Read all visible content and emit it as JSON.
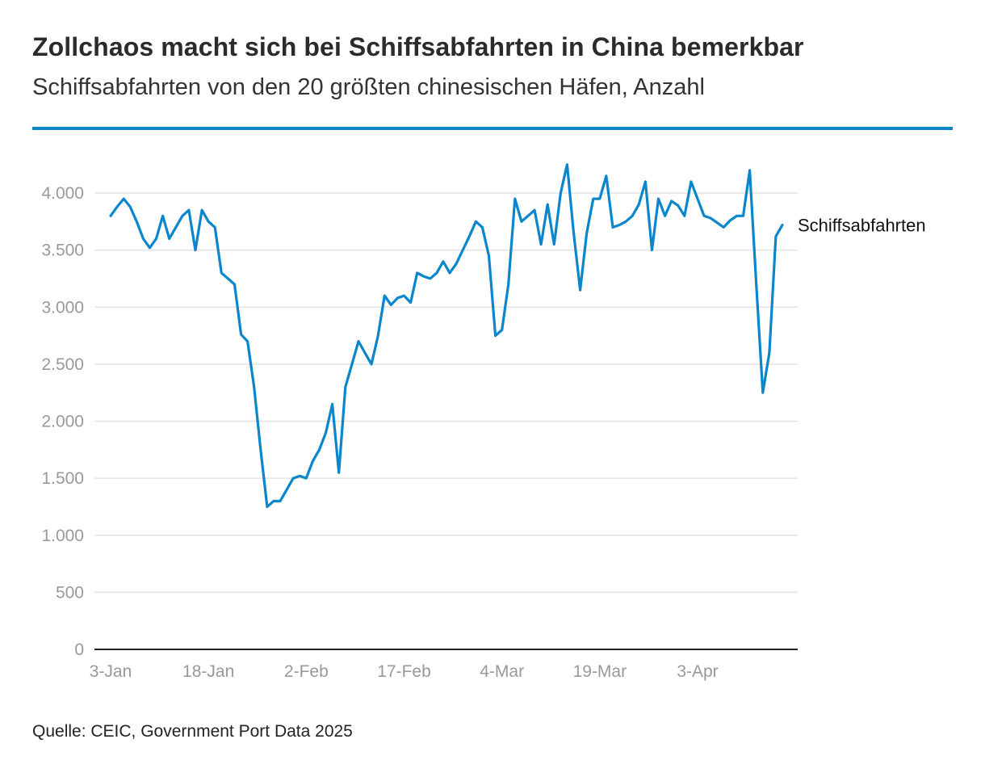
{
  "header": {
    "title": "Zollchaos macht sich bei Schiffsabfahrten in China bemerkbar",
    "subtitle": "Schiffsabfahrten von den 20 größten chinesischen Häfen, Anzahl"
  },
  "footer": {
    "source": "Quelle: CEIC, Government Port Data 2025"
  },
  "colors": {
    "accent": "#0a86cc",
    "line": "#0a86cc",
    "grid": "#e3e3e3",
    "tick": "#999999"
  },
  "chart_data": {
    "type": "line",
    "title": "",
    "xlabel": "",
    "ylabel": "",
    "ylim": [
      0,
      4300
    ],
    "yticks": [
      {
        "value": 0,
        "label": "0"
      },
      {
        "value": 500,
        "label": "500"
      },
      {
        "value": 1000,
        "label": "1.000"
      },
      {
        "value": 1500,
        "label": "1.500"
      },
      {
        "value": 2000,
        "label": "2.000"
      },
      {
        "value": 2500,
        "label": "2.500"
      },
      {
        "value": 3000,
        "label": "3.000"
      },
      {
        "value": 3500,
        "label": "3.500"
      },
      {
        "value": 4000,
        "label": "4.000"
      }
    ],
    "xticks": [
      {
        "day": 0,
        "label": "3-Jan"
      },
      {
        "day": 15,
        "label": "18-Jan"
      },
      {
        "day": 30,
        "label": "2-Feb"
      },
      {
        "day": 45,
        "label": "17-Feb"
      },
      {
        "day": 60,
        "label": "4-Mar"
      },
      {
        "day": 75,
        "label": "19-Mar"
      },
      {
        "day": 90,
        "label": "3-Apr"
      }
    ],
    "grid": true,
    "series": [
      {
        "name": "Schiffsabfahrten",
        "points": [
          [
            0,
            3800
          ],
          [
            1,
            3880
          ],
          [
            2,
            3950
          ],
          [
            3,
            3880
          ],
          [
            4,
            3750
          ],
          [
            5,
            3600
          ],
          [
            6,
            3520
          ],
          [
            7,
            3600
          ],
          [
            8,
            3800
          ],
          [
            9,
            3600
          ],
          [
            10,
            3700
          ],
          [
            11,
            3800
          ],
          [
            12,
            3850
          ],
          [
            13,
            3500
          ],
          [
            14,
            3850
          ],
          [
            15,
            3750
          ],
          [
            16,
            3700
          ],
          [
            17,
            3300
          ],
          [
            18,
            3250
          ],
          [
            19,
            3200
          ],
          [
            20,
            2760
          ],
          [
            21,
            2700
          ],
          [
            22,
            2300
          ],
          [
            23,
            1750
          ],
          [
            24,
            1250
          ],
          [
            25,
            1300
          ],
          [
            26,
            1300
          ],
          [
            27,
            1400
          ],
          [
            28,
            1500
          ],
          [
            29,
            1520
          ],
          [
            30,
            1500
          ],
          [
            31,
            1650
          ],
          [
            32,
            1750
          ],
          [
            33,
            1900
          ],
          [
            34,
            2150
          ],
          [
            35,
            1550
          ],
          [
            36,
            2300
          ],
          [
            37,
            2500
          ],
          [
            38,
            2700
          ],
          [
            39,
            2600
          ],
          [
            40,
            2500
          ],
          [
            41,
            2750
          ],
          [
            42,
            3100
          ],
          [
            43,
            3020
          ],
          [
            44,
            3080
          ],
          [
            45,
            3100
          ],
          [
            46,
            3040
          ],
          [
            47,
            3300
          ],
          [
            48,
            3270
          ],
          [
            49,
            3250
          ],
          [
            50,
            3300
          ],
          [
            51,
            3400
          ],
          [
            52,
            3300
          ],
          [
            53,
            3380
          ],
          [
            54,
            3500
          ],
          [
            55,
            3620
          ],
          [
            56,
            3750
          ],
          [
            57,
            3700
          ],
          [
            58,
            3450
          ],
          [
            59,
            2750
          ],
          [
            60,
            2800
          ],
          [
            61,
            3200
          ],
          [
            62,
            3950
          ],
          [
            63,
            3750
          ],
          [
            64,
            3800
          ],
          [
            65,
            3850
          ],
          [
            66,
            3550
          ],
          [
            67,
            3900
          ],
          [
            68,
            3550
          ],
          [
            69,
            4000
          ],
          [
            70,
            4250
          ],
          [
            71,
            3650
          ],
          [
            72,
            3150
          ],
          [
            73,
            3650
          ],
          [
            74,
            3950
          ],
          [
            75,
            3950
          ],
          [
            76,
            4150
          ],
          [
            77,
            3700
          ],
          [
            78,
            3720
          ],
          [
            79,
            3750
          ],
          [
            80,
            3800
          ],
          [
            81,
            3900
          ],
          [
            82,
            4100
          ],
          [
            83,
            3500
          ],
          [
            84,
            3950
          ],
          [
            85,
            3800
          ],
          [
            86,
            3930
          ],
          [
            87,
            3890
          ],
          [
            88,
            3800
          ],
          [
            89,
            4100
          ],
          [
            90,
            3950
          ],
          [
            91,
            3800
          ],
          [
            92,
            3780
          ],
          [
            93,
            3740
          ],
          [
            94,
            3700
          ],
          [
            95,
            3760
          ],
          [
            96,
            3800
          ],
          [
            97,
            3800
          ],
          [
            98,
            4200
          ],
          [
            99,
            3200
          ],
          [
            100,
            2250
          ],
          [
            101,
            2600
          ],
          [
            102,
            3620
          ],
          [
            103,
            3720
          ]
        ]
      }
    ],
    "legend": "series label at line end (right)"
  }
}
